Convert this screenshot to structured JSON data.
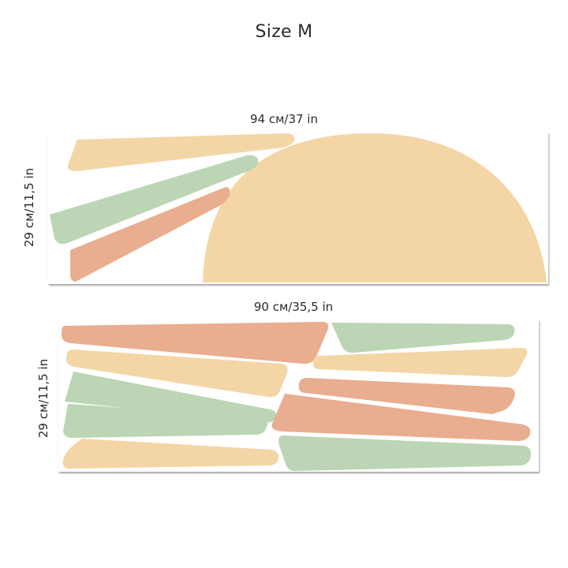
{
  "title": "Size M",
  "colors": {
    "peach": "#F4D5A5",
    "sage": "#BCD5B4",
    "terracotta": "#E9AD8F",
    "background": "#FFFFFF"
  },
  "sheets": [
    {
      "width_label": "94 см/37 in",
      "height_label": "29 см/11,5 in",
      "shapes": [
        {
          "kind": "semicircle",
          "color": "peach"
        },
        {
          "kind": "ray",
          "color": "peach"
        },
        {
          "kind": "ray",
          "color": "sage"
        },
        {
          "kind": "ray",
          "color": "terracotta"
        }
      ]
    },
    {
      "width_label": "90 см/35,5 in",
      "height_label": "29 см/11,5 in",
      "shapes": [
        {
          "kind": "ray",
          "color": "terracotta"
        },
        {
          "kind": "ray",
          "color": "peach"
        },
        {
          "kind": "ray",
          "color": "sage"
        },
        {
          "kind": "ray",
          "color": "sage"
        },
        {
          "kind": "ray",
          "color": "peach"
        },
        {
          "kind": "ray",
          "color": "sage"
        },
        {
          "kind": "ray",
          "color": "peach"
        },
        {
          "kind": "ray",
          "color": "terracotta"
        },
        {
          "kind": "ray",
          "color": "terracotta"
        },
        {
          "kind": "ray",
          "color": "sage"
        }
      ]
    }
  ]
}
